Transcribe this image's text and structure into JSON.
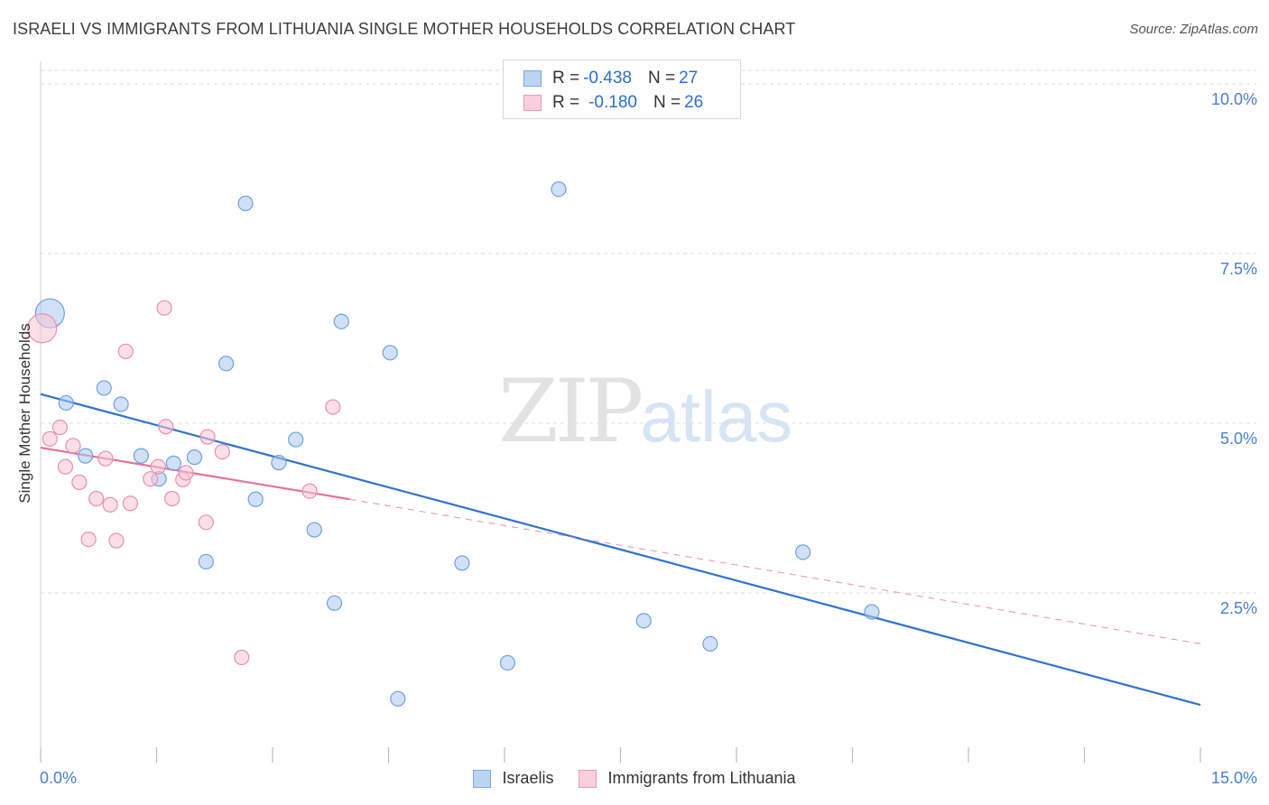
{
  "title": "ISRAELI VS IMMIGRANTS FROM LITHUANIA SINGLE MOTHER HOUSEHOLDS CORRELATION CHART",
  "source": "Source: ZipAtlas.com",
  "watermark": {
    "zip": "ZIP",
    "atlas": "atlas"
  },
  "legend_top": {
    "rows": [
      {
        "r_label": "R = ",
        "r_value": "-0.438",
        "n_label": "N = ",
        "n_value": "27"
      },
      {
        "r_label": "R = ",
        "r_value": "-0.180",
        "n_label": "N = ",
        "n_value": "26"
      }
    ]
  },
  "chart_data": {
    "type": "scatter",
    "xlabel": "",
    "ylabel": "Single Mother Households",
    "xlim": [
      0,
      15
    ],
    "ylim": [
      0,
      10.2
    ],
    "x_tick_labels": [
      "0.0%",
      "15.0%"
    ],
    "y_ticks": [
      2.5,
      5.0,
      7.5,
      10.0
    ],
    "y_tick_labels": [
      "2.5%",
      "5.0%",
      "7.5%",
      "10.0%"
    ],
    "grid": true,
    "legend_position": "bottom",
    "series": [
      {
        "name": "Israelis",
        "color": "#a9c8f0",
        "stroke": "#6f9fe0",
        "line_color": "#2f72d0",
        "trend": {
          "x0": 0.0,
          "y0": 5.43,
          "x1": 15.0,
          "y1": 0.85
        },
        "points": [
          {
            "x": 0.12,
            "y": 6.62,
            "big": true
          },
          {
            "x": 0.33,
            "y": 5.3
          },
          {
            "x": 0.82,
            "y": 5.52
          },
          {
            "x": 1.04,
            "y": 5.28
          },
          {
            "x": 0.58,
            "y": 4.52
          },
          {
            "x": 1.3,
            "y": 4.52
          },
          {
            "x": 1.53,
            "y": 4.18
          },
          {
            "x": 1.72,
            "y": 4.41
          },
          {
            "x": 1.99,
            "y": 4.5
          },
          {
            "x": 2.4,
            "y": 5.88
          },
          {
            "x": 2.65,
            "y": 8.24
          },
          {
            "x": 2.78,
            "y": 3.88
          },
          {
            "x": 3.08,
            "y": 4.42
          },
          {
            "x": 3.3,
            "y": 4.76
          },
          {
            "x": 3.54,
            "y": 3.43
          },
          {
            "x": 3.89,
            "y": 6.5
          },
          {
            "x": 4.52,
            "y": 6.04
          },
          {
            "x": 6.7,
            "y": 8.45
          },
          {
            "x": 2.14,
            "y": 2.96
          },
          {
            "x": 3.8,
            "y": 2.35
          },
          {
            "x": 5.45,
            "y": 2.94
          },
          {
            "x": 7.8,
            "y": 2.09
          },
          {
            "x": 9.86,
            "y": 3.1
          },
          {
            "x": 10.75,
            "y": 2.22
          },
          {
            "x": 8.66,
            "y": 1.75
          },
          {
            "x": 6.04,
            "y": 1.47
          },
          {
            "x": 4.62,
            "y": 0.94
          }
        ]
      },
      {
        "name": "Immigrants from Lithuania",
        "color": "#f7c4d4",
        "stroke": "#e890ad",
        "line_color": "#e8709a",
        "trend": {
          "x0": 0.0,
          "y0": 4.64,
          "x1": 4.0,
          "y1": 3.88
        },
        "trend_dashed": {
          "x0": 4.0,
          "y0": 3.88,
          "x1": 15.0,
          "y1": 1.75
        },
        "points": [
          {
            "x": 0.02,
            "y": 6.4,
            "big": true
          },
          {
            "x": 0.12,
            "y": 4.77
          },
          {
            "x": 0.25,
            "y": 4.94
          },
          {
            "x": 0.32,
            "y": 4.36
          },
          {
            "x": 0.42,
            "y": 4.67
          },
          {
            "x": 0.5,
            "y": 4.13
          },
          {
            "x": 0.62,
            "y": 3.29
          },
          {
            "x": 0.72,
            "y": 3.89
          },
          {
            "x": 0.84,
            "y": 4.48
          },
          {
            "x": 0.9,
            "y": 3.8
          },
          {
            "x": 0.98,
            "y": 3.27
          },
          {
            "x": 1.1,
            "y": 6.06
          },
          {
            "x": 1.16,
            "y": 3.82
          },
          {
            "x": 1.42,
            "y": 4.18
          },
          {
            "x": 1.52,
            "y": 4.36
          },
          {
            "x": 1.6,
            "y": 6.7
          },
          {
            "x": 1.62,
            "y": 4.95
          },
          {
            "x": 1.7,
            "y": 3.89
          },
          {
            "x": 1.84,
            "y": 4.17
          },
          {
            "x": 1.88,
            "y": 4.27
          },
          {
            "x": 2.14,
            "y": 3.54
          },
          {
            "x": 2.16,
            "y": 4.8
          },
          {
            "x": 2.35,
            "y": 4.58
          },
          {
            "x": 2.6,
            "y": 1.55
          },
          {
            "x": 3.48,
            "y": 4.0
          },
          {
            "x": 3.78,
            "y": 5.24
          }
        ]
      }
    ]
  }
}
